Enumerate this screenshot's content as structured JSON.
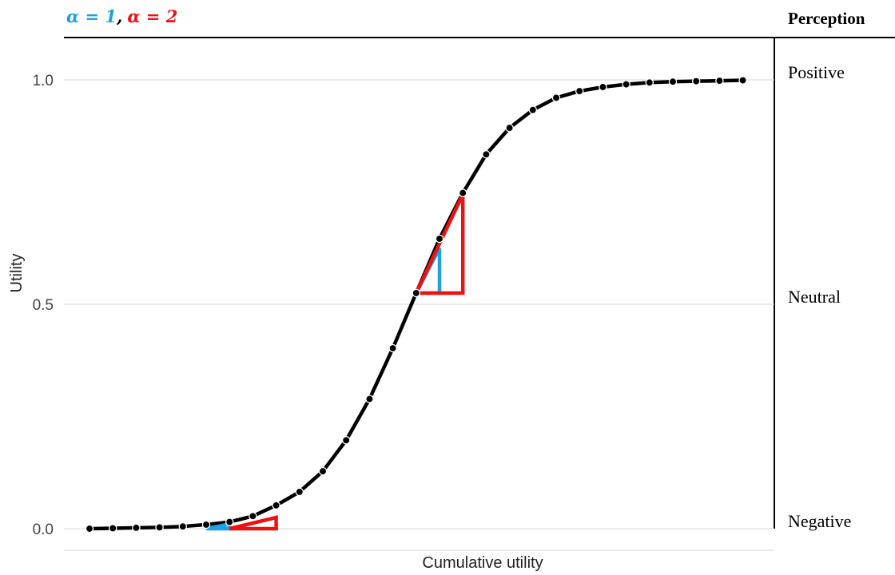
{
  "legend": {
    "alpha1": "α = 1",
    "separator": ",",
    "alpha2": "α = 2",
    "alpha1_color": "#1aa3e0",
    "alpha2_color": "#ee1111"
  },
  "perception_panel": {
    "title": "Perception",
    "levels": [
      {
        "label": "Positive",
        "y": 1.0
      },
      {
        "label": "Neutral",
        "y": 0.5
      },
      {
        "label": "Negative",
        "y": 0.0
      }
    ]
  },
  "chart_data": {
    "type": "line",
    "xlabel": "Cumulative utility",
    "ylabel": "Utility",
    "x_ticks_visible": false,
    "ylim": [
      0,
      1
    ],
    "yticks": [
      {
        "value": 0.0,
        "label": "0.0"
      },
      {
        "value": 0.5,
        "label": "0.5"
      },
      {
        "value": 1.0,
        "label": "1.0"
      }
    ],
    "grid": true,
    "line_color": "#000000",
    "series": [
      {
        "x": [
          0,
          1,
          2,
          3,
          4,
          5,
          6,
          7,
          8,
          9,
          10,
          11,
          12,
          13,
          14,
          15,
          16,
          17,
          18,
          19,
          20,
          21,
          22,
          23,
          24,
          25,
          26,
          27,
          28
        ],
        "values": [
          0.0,
          0.001,
          0.002,
          0.003,
          0.005,
          0.009,
          0.015,
          0.028,
          0.052,
          0.082,
          0.128,
          0.197,
          0.289,
          0.402,
          0.525,
          0.646,
          0.748,
          0.834,
          0.893,
          0.933,
          0.96,
          0.975,
          0.984,
          0.99,
          0.994,
          0.996,
          0.997,
          0.998,
          0.999
        ]
      }
    ],
    "slope_triangles": [
      {
        "alpha": 1,
        "color": "#1aa3e0",
        "x": 14,
        "y": 0.525,
        "rise": 0.1
      },
      {
        "alpha": 2,
        "color": "#ee1111",
        "x": 14,
        "y": 0.525,
        "rise": 0.22
      },
      {
        "alpha": 1,
        "color": "#1aa3e0",
        "x": 5,
        "y": 0.0,
        "rise": 0.01
      },
      {
        "alpha": 2,
        "color": "#ee1111",
        "x": 6,
        "y": 0.0,
        "rise": 0.025
      }
    ]
  }
}
